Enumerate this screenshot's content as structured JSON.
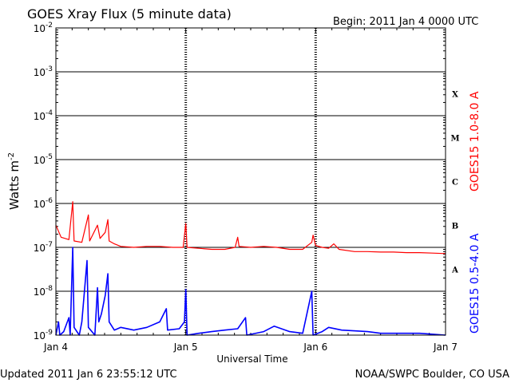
{
  "chart_data": {
    "type": "line",
    "title": "GOES Xray Flux (5 minute data)",
    "begin_label": "Begin:  2011 Jan 4 0000 UTC",
    "xlabel": "Universal Time",
    "ylabel": "Watts m",
    "ylabel_sup": "-2",
    "x_ticks": [
      "Jan 4",
      "Jan 5",
      "Jan 6",
      "Jan 7"
    ],
    "xlim_days": [
      0,
      3
    ],
    "y_log_scale": true,
    "y_ticks": [
      {
        "base": "10",
        "exp": "-9"
      },
      {
        "base": "10",
        "exp": "-8"
      },
      {
        "base": "10",
        "exp": "-7"
      },
      {
        "base": "10",
        "exp": "-6"
      },
      {
        "base": "10",
        "exp": "-5"
      },
      {
        "base": "10",
        "exp": "-4"
      },
      {
        "base": "10",
        "exp": "-3"
      },
      {
        "base": "10",
        "exp": "-2"
      }
    ],
    "ylim_exp": [
      -9,
      -2
    ],
    "flare_classes": [
      "A",
      "B",
      "C",
      "M",
      "X"
    ],
    "series": [
      {
        "name": "GOES15 1.0-8.0 A",
        "color": "#ff0000",
        "points": [
          [
            0,
            3.2e-07
          ],
          [
            0.04,
            1.7e-07
          ],
          [
            0.1,
            1.5e-07
          ],
          [
            0.13,
            1.1e-06
          ],
          [
            0.14,
            1.4e-07
          ],
          [
            0.2,
            1.3e-07
          ],
          [
            0.25,
            5.5e-07
          ],
          [
            0.26,
            1.4e-07
          ],
          [
            0.32,
            3.2e-07
          ],
          [
            0.34,
            1.6e-07
          ],
          [
            0.38,
            2.2e-07
          ],
          [
            0.4,
            4.3e-07
          ],
          [
            0.41,
            1.4e-07
          ],
          [
            0.45,
            1.2e-07
          ],
          [
            0.5,
            1.05e-07
          ],
          [
            0.6,
            1e-07
          ],
          [
            0.7,
            1.05e-07
          ],
          [
            0.8,
            1.05e-07
          ],
          [
            0.9,
            1e-07
          ],
          [
            0.98,
            1e-07
          ],
          [
            1.0,
            3.5e-07
          ],
          [
            1.01,
            1e-07
          ],
          [
            1.1,
            9.5e-08
          ],
          [
            1.2,
            9e-08
          ],
          [
            1.3,
            9e-08
          ],
          [
            1.38,
            1e-07
          ],
          [
            1.4,
            1.7e-07
          ],
          [
            1.41,
            1.05e-07
          ],
          [
            1.5,
            1e-07
          ],
          [
            1.6,
            1.05e-07
          ],
          [
            1.7,
            1e-07
          ],
          [
            1.8,
            9e-08
          ],
          [
            1.9,
            9e-08
          ],
          [
            1.97,
            1.3e-07
          ],
          [
            1.98,
            1.9e-07
          ],
          [
            2.0,
            1.1e-07
          ],
          [
            2.05,
            1e-07
          ],
          [
            2.1,
            9.5e-08
          ],
          [
            2.14,
            1.2e-07
          ],
          [
            2.18,
            9e-08
          ],
          [
            2.3,
            8e-08
          ],
          [
            2.4,
            8e-08
          ],
          [
            2.5,
            7.8e-08
          ],
          [
            2.6,
            7.8e-08
          ],
          [
            2.7,
            7.6e-08
          ],
          [
            2.8,
            7.6e-08
          ],
          [
            2.9,
            7.4e-08
          ],
          [
            3.0,
            7.2e-08
          ]
        ]
      },
      {
        "name": "GOES15 0.5-4.0 A",
        "color": "#0000ff",
        "points": [
          [
            0,
            1e-09
          ],
          [
            0.02,
            2e-09
          ],
          [
            0.03,
            1e-09
          ],
          [
            0.06,
            1.2e-09
          ],
          [
            0.1,
            2.5e-09
          ],
          [
            0.11,
            1e-09
          ],
          [
            0.13,
            1e-07
          ],
          [
            0.14,
            1.5e-09
          ],
          [
            0.18,
            1e-09
          ],
          [
            0.2,
            2e-09
          ],
          [
            0.24,
            5e-08
          ],
          [
            0.25,
            1.5e-09
          ],
          [
            0.3,
            1e-09
          ],
          [
            0.32,
            1.2e-08
          ],
          [
            0.33,
            2e-09
          ],
          [
            0.35,
            3e-09
          ],
          [
            0.38,
            8e-09
          ],
          [
            0.4,
            2.5e-08
          ],
          [
            0.41,
            2e-09
          ],
          [
            0.45,
            1.3e-09
          ],
          [
            0.5,
            1.5e-09
          ],
          [
            0.6,
            1.3e-09
          ],
          [
            0.7,
            1.5e-09
          ],
          [
            0.8,
            2e-09
          ],
          [
            0.85,
            4e-09
          ],
          [
            0.86,
            1.3e-09
          ],
          [
            0.95,
            1.4e-09
          ],
          [
            0.99,
            2e-09
          ],
          [
            1.0,
            1.1e-08
          ],
          [
            1.01,
            1e-09
          ],
          [
            1.1,
            1.1e-09
          ],
          [
            1.2,
            1.2e-09
          ],
          [
            1.3,
            1.3e-09
          ],
          [
            1.4,
            1.4e-09
          ],
          [
            1.46,
            2.5e-09
          ],
          [
            1.47,
            1e-09
          ],
          [
            1.6,
            1.2e-09
          ],
          [
            1.68,
            1.6e-09
          ],
          [
            1.8,
            1.2e-09
          ],
          [
            1.9,
            1.1e-09
          ],
          [
            1.97,
            1e-08
          ],
          [
            1.98,
            1e-09
          ],
          [
            2.05,
            1.2e-09
          ],
          [
            2.1,
            1.5e-09
          ],
          [
            2.2,
            1.3e-09
          ],
          [
            2.4,
            1.2e-09
          ],
          [
            2.5,
            1.1e-09
          ],
          [
            2.6,
            1.1e-09
          ],
          [
            2.8,
            1.1e-09
          ],
          [
            3.0,
            1e-09
          ]
        ]
      }
    ]
  },
  "footer": {
    "updated": "Updated 2011 Jan  6 23:55:12 UTC",
    "source": "NOAA/SWPC Boulder, CO USA"
  }
}
